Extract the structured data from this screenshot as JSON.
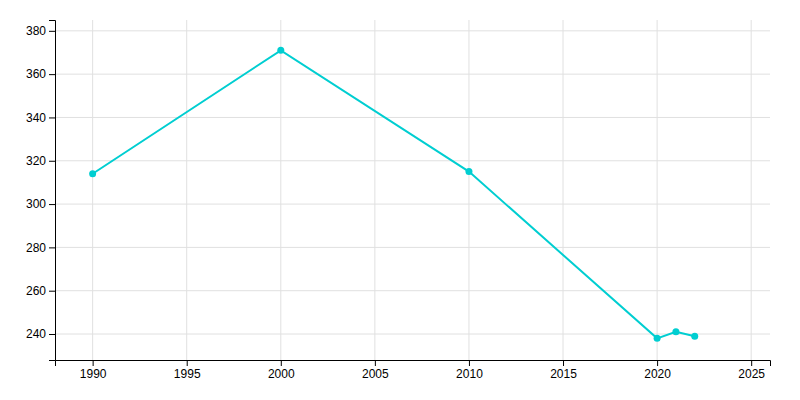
{
  "chart_data": {
    "type": "line",
    "x": [
      1990,
      2000,
      2010,
      2020,
      2021,
      2022
    ],
    "values": [
      314,
      371,
      315,
      238,
      241,
      239
    ],
    "color": "#00CED1",
    "marker": "circle",
    "xlim": [
      1988,
      2026
    ],
    "ylim": [
      228,
      385
    ],
    "xticks": [
      1990,
      1995,
      2000,
      2005,
      2010,
      2015,
      2020,
      2025
    ],
    "yticks": [
      240,
      260,
      280,
      300,
      320,
      340,
      360,
      380
    ],
    "grid": true
  }
}
